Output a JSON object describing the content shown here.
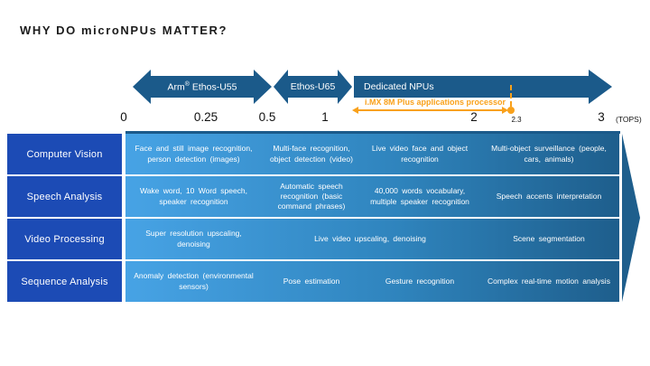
{
  "title": "WHY DO microNPUs MATTER?",
  "colors": {
    "steel_arrow_blue": "#1b5a8a",
    "row_label_blue": "#1c4bb5",
    "row_gradient_left": "#47a3e5",
    "row_gradient_right": "#1e5e8c",
    "annotation_orange": "#f9a11b",
    "title_text": "#1c1c1c"
  },
  "timeline": {
    "arrows": {
      "u55": {
        "prefix": "Arm",
        "sup": "®",
        "suffix": " Ethos-U55"
      },
      "u65": {
        "label": "Ethos-U65"
      },
      "dedicated": {
        "label": "Dedicated NPUs"
      }
    },
    "annotation": {
      "label": "i.MX 8M Plus applications processor",
      "marker_value": "2.3"
    },
    "axis": {
      "ticks": [
        "0",
        "0.25",
        "0.5",
        "1",
        "2",
        "2.3",
        "3"
      ],
      "unit": "(TOPS)"
    }
  },
  "matrix": {
    "rows": [
      {
        "label": "Computer Vision",
        "cells": [
          "Face and still image recognition, person detection (images)",
          "Multi-face recognition, object detection (video)",
          "Live video face and object recognition",
          "Multi-object surveillance (people, cars, animals)"
        ]
      },
      {
        "label": "Speech Analysis",
        "cells": [
          "Wake word, 10 Word speech, speaker recognition",
          "Automatic speech recognition (basic command phrases)",
          "40,000 words vocabulary, multiple speaker recognition",
          "Speech accents interpretation"
        ]
      },
      {
        "label": "Video Processing",
        "cells": [
          "Super resolution upscaling, denoising",
          "Live video upscaling, denoising",
          "Scene segmentation"
        ]
      },
      {
        "label": "Sequence Analysis",
        "cells": [
          "Anomaly detection (environmental sensors)",
          "Pose estimation",
          "Gesture recognition",
          "Complex real-time motion analysis"
        ]
      }
    ]
  }
}
